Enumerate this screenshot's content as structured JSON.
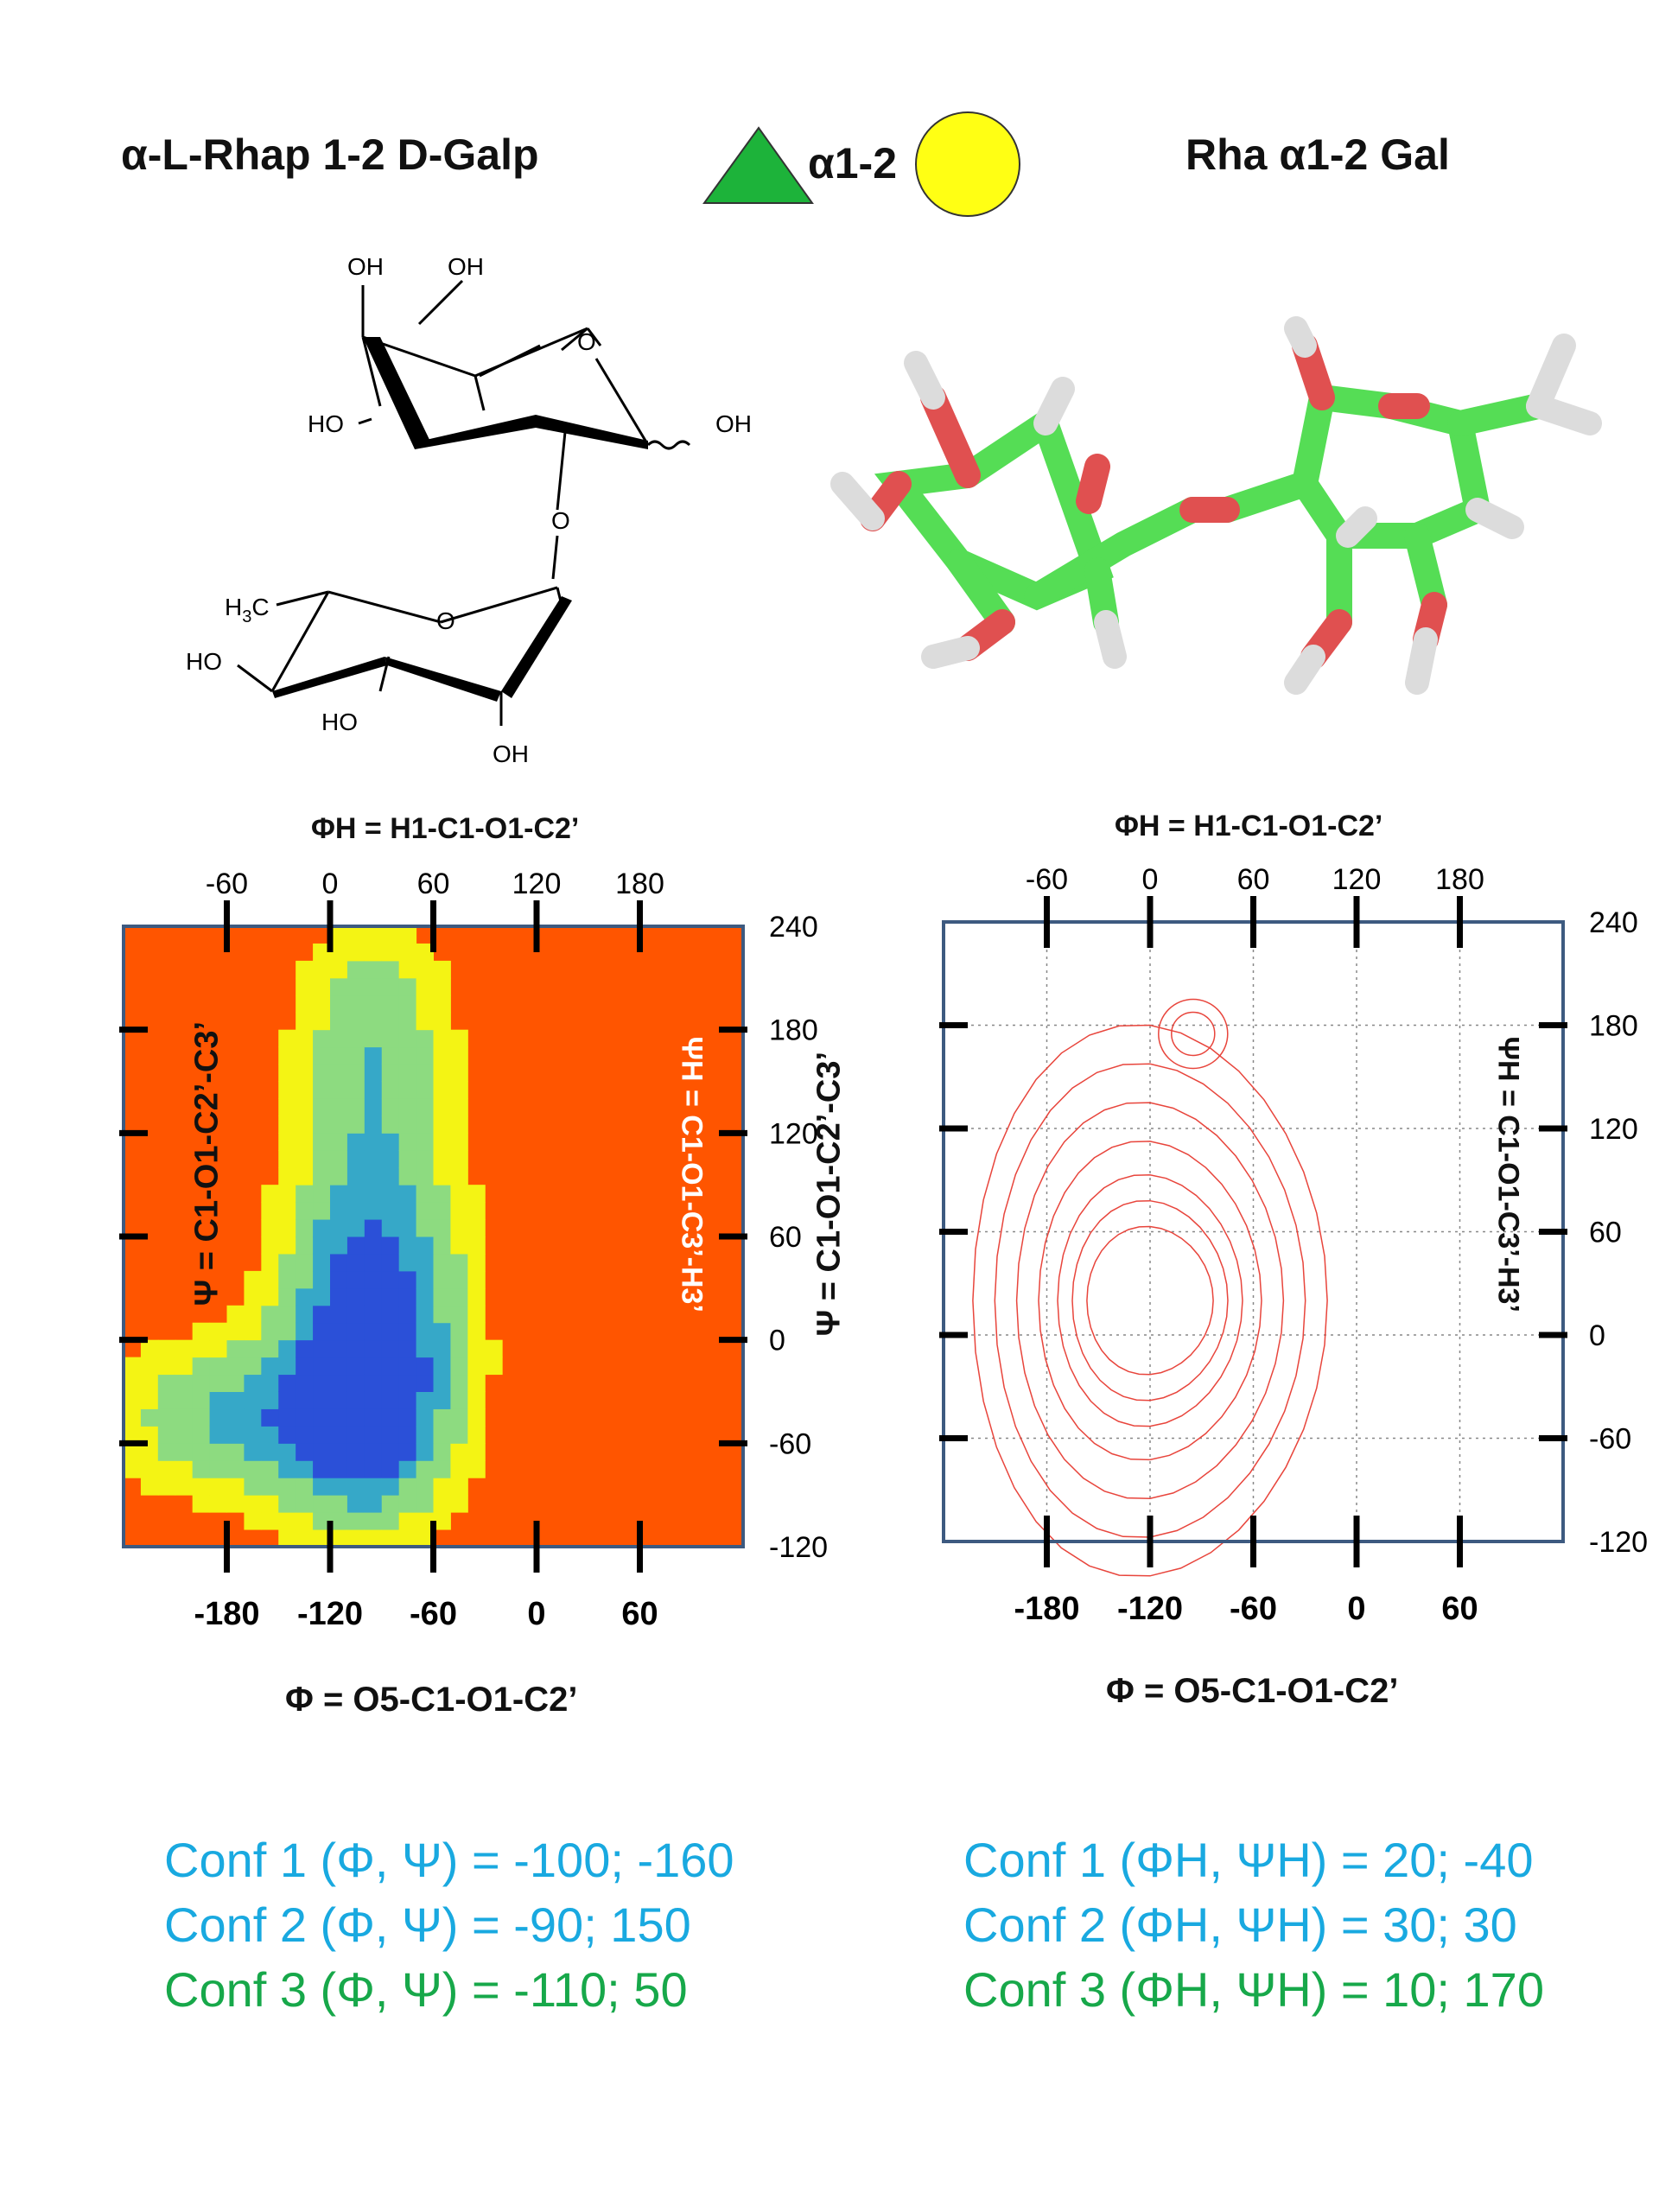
{
  "header": {
    "left_title": "α-L-Rhap 1-2 D-Galp",
    "linkage": "α1-2",
    "right_title": "Rha α1-2 Gal"
  },
  "structure": {
    "labels": [
      "OH",
      "OH",
      "O",
      "HO",
      "OH",
      "O",
      "H3C",
      "O",
      "HO",
      "HO",
      "OH"
    ]
  },
  "chart_data": [
    {
      "type": "heatmap",
      "top_axis_title": "ΦH = H1-C1-O1-C2’",
      "top_ticks": [
        -60,
        0,
        60,
        120,
        180
      ],
      "bottom_axis_title": "Φ = O5-C1-O1-C2’",
      "bottom_ticks": [
        -180,
        -120,
        -60,
        0,
        60
      ],
      "left_axis_title": "Ψ = C1-O1-C2’-C3’",
      "right_inner_title": "ΨH = C1-O1-C3’-H3’",
      "right_ticks": [
        240,
        180,
        120,
        60,
        0,
        -60,
        -120
      ],
      "xlim": [
        -240,
        120
      ],
      "ylim": [
        -120,
        240
      ],
      "colorscale": [
        "#2b50d8",
        "#36a8c8",
        "#8ddb80",
        "#f4f414",
        "#ff5500"
      ]
    },
    {
      "type": "contour",
      "top_axis_title": "ΦH = H1-C1-O1-C2’",
      "top_ticks": [
        -60,
        0,
        60,
        120,
        180
      ],
      "bottom_axis_title": "Φ = O5-C1-O1-C2’",
      "bottom_ticks": [
        -180,
        -120,
        -60,
        0,
        60
      ],
      "right_axis_title": "Ψ = C1-O1-C2’-C3’",
      "right_inner_title": "ΨH = C1-O1-C3’-H3’",
      "right_ticks": [
        240,
        180,
        120,
        60,
        0,
        -60,
        -120
      ],
      "xlim": [
        -240,
        120
      ],
      "ylim": [
        -120,
        240
      ],
      "grid": true,
      "line_color": "#e8453c"
    }
  ],
  "conformations": {
    "left": [
      {
        "text": "Conf 1 (Φ, Ψ) = -100; -160",
        "color": "#19a9e0"
      },
      {
        "text": "Conf 2 (Φ, Ψ) =  -90; 150",
        "color": "#19a9e0"
      },
      {
        "text": "Conf 3 (Φ, Ψ) =  -110; 50",
        "color": "#17a84a"
      }
    ],
    "right": [
      {
        "text": "Conf 1 (ΦH, ΨH) = 20; -40",
        "color": "#19a9e0"
      },
      {
        "text": "Conf 2 (ΦH, ΨH) = 30; 30",
        "color": "#19a9e0"
      },
      {
        "text": "Conf 3 (ΦH, ΨH) = 10; 170",
        "color": "#17a84a"
      }
    ]
  }
}
